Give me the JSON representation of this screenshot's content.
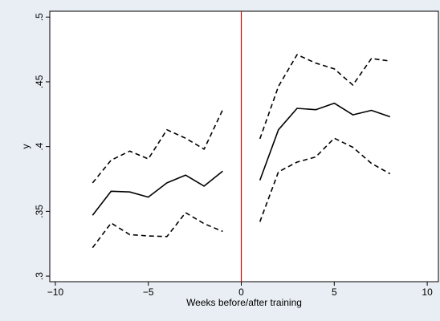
{
  "chart_data": {
    "type": "line",
    "title": "",
    "xlabel": "Weeks before/after training",
    "ylabel": "y",
    "xlim": [
      -10.3,
      10.6
    ],
    "ylim": [
      0.2957,
      0.5045
    ],
    "xticks": [
      -10,
      -5,
      0,
      5,
      10
    ],
    "xtick_labels": [
      "−10",
      "−5",
      "0",
      "5",
      "10"
    ],
    "yticks": [
      0.3,
      0.35,
      0.4,
      0.45,
      0.5
    ],
    "ytick_labels": [
      ".3",
      ".35",
      ".4",
      ".45",
      ".5"
    ],
    "grid": false,
    "legend": "none",
    "vline": {
      "x": 0,
      "color": "#cc0000"
    },
    "series": [
      {
        "role": "estimate",
        "style": "solid",
        "segment": "before",
        "color": "#000000",
        "x": [
          -8,
          -7,
          -6,
          -5,
          -4,
          -3,
          -2,
          -1
        ],
        "y": [
          0.347,
          0.3655,
          0.365,
          0.361,
          0.372,
          0.378,
          0.3695,
          0.381
        ]
      },
      {
        "role": "estimate",
        "style": "solid",
        "segment": "after",
        "color": "#000000",
        "x": [
          1,
          2,
          3,
          4,
          5,
          6,
          7,
          8
        ],
        "y": [
          0.374,
          0.413,
          0.4295,
          0.4285,
          0.4335,
          0.4245,
          0.428,
          0.423
        ]
      },
      {
        "role": "upper-ci",
        "style": "dashed",
        "segment": "before",
        "color": "#000000",
        "x": [
          -8,
          -7,
          -6,
          -5,
          -4,
          -3,
          -2,
          -1
        ],
        "y": [
          0.372,
          0.3895,
          0.3965,
          0.3905,
          0.413,
          0.4065,
          0.398,
          0.4285
        ]
      },
      {
        "role": "upper-ci",
        "style": "dashed",
        "segment": "after",
        "color": "#000000",
        "x": [
          1,
          2,
          3,
          4,
          5,
          6,
          7,
          8
        ],
        "y": [
          0.406,
          0.4465,
          0.471,
          0.4645,
          0.46,
          0.4475,
          0.468,
          0.466
        ]
      },
      {
        "role": "lower-ci",
        "style": "dashed",
        "segment": "before",
        "color": "#000000",
        "x": [
          -8,
          -7,
          -6,
          -5,
          -4,
          -3,
          -2,
          -1
        ],
        "y": [
          0.322,
          0.341,
          0.332,
          0.331,
          0.3305,
          0.349,
          0.3405,
          0.3345
        ]
      },
      {
        "role": "lower-ci",
        "style": "dashed",
        "segment": "after",
        "color": "#000000",
        "x": [
          1,
          2,
          3,
          4,
          5,
          6,
          7,
          8
        ],
        "y": [
          0.342,
          0.3805,
          0.388,
          0.392,
          0.4065,
          0.3995,
          0.387,
          0.379
        ]
      }
    ]
  }
}
